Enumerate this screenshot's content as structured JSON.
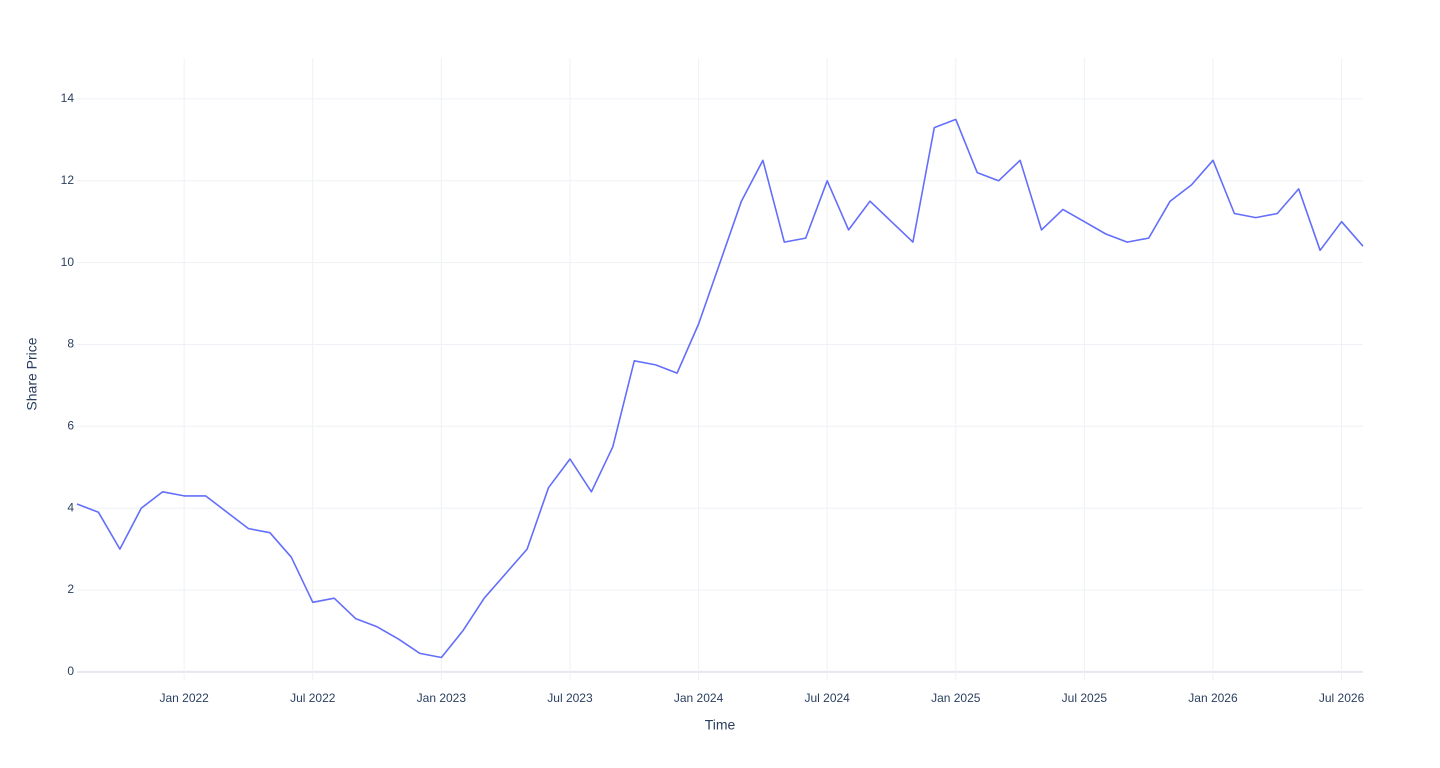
{
  "chart_data": {
    "type": "line",
    "x_label": "Time",
    "y_label": "Share Price",
    "x": [
      "2021-08",
      "2021-09",
      "2021-10",
      "2021-11",
      "2021-12",
      "2022-01",
      "2022-02",
      "2022-03",
      "2022-04",
      "2022-05",
      "2022-06",
      "2022-07",
      "2022-08",
      "2022-09",
      "2022-10",
      "2022-11",
      "2022-12",
      "2023-01",
      "2023-02",
      "2023-03",
      "2023-04",
      "2023-05",
      "2023-06",
      "2023-07",
      "2023-08",
      "2023-09",
      "2023-10",
      "2023-11",
      "2023-12",
      "2024-01",
      "2024-02",
      "2024-03",
      "2024-04",
      "2024-05",
      "2024-06",
      "2024-07",
      "2024-08",
      "2024-09",
      "2024-10",
      "2024-11",
      "2024-12",
      "2025-01",
      "2025-02",
      "2025-03",
      "2025-04",
      "2025-05",
      "2025-06",
      "2025-07",
      "2025-08",
      "2025-09",
      "2025-10",
      "2025-11",
      "2025-12",
      "2026-01",
      "2026-02",
      "2026-03",
      "2026-04",
      "2026-05",
      "2026-06",
      "2026-07",
      "2026-08"
    ],
    "series": [
      {
        "color": "#636efa",
        "values": [
          4.1,
          3.9,
          3.0,
          4.0,
          4.4,
          4.3,
          4.3,
          3.9,
          3.5,
          3.4,
          2.8,
          1.7,
          1.8,
          1.3,
          1.1,
          0.8,
          0.45,
          0.35,
          1.0,
          1.8,
          2.4,
          3.0,
          4.5,
          5.2,
          4.4,
          5.5,
          7.6,
          7.5,
          7.3,
          8.5,
          10.0,
          11.5,
          12.5,
          10.5,
          10.6,
          12.0,
          10.8,
          11.5,
          11.0,
          10.5,
          13.3,
          13.5,
          12.2,
          12.0,
          12.5,
          10.8,
          11.3,
          11.0,
          10.7,
          10.5,
          10.6,
          11.5,
          11.9,
          12.5,
          11.2,
          11.1,
          11.2,
          11.8,
          10.3,
          11.0,
          10.4
        ]
      }
    ],
    "xlim": [
      "2021-08",
      "2026-08"
    ],
    "xticks": [
      {
        "value": "2022-01",
        "label": "Jan 2022"
      },
      {
        "value": "2022-07",
        "label": "Jul 2022"
      },
      {
        "value": "2023-01",
        "label": "Jan 2023"
      },
      {
        "value": "2023-07",
        "label": "Jul 2023"
      },
      {
        "value": "2024-01",
        "label": "Jan 2024"
      },
      {
        "value": "2024-07",
        "label": "Jul 2024"
      },
      {
        "value": "2025-01",
        "label": "Jan 2025"
      },
      {
        "value": "2025-07",
        "label": "Jul 2025"
      },
      {
        "value": "2026-01",
        "label": "Jan 2026"
      },
      {
        "value": "2026-07",
        "label": "Jul 2026"
      }
    ],
    "ylim": [
      -0.2,
      15
    ],
    "yticks": [
      0,
      2,
      4,
      6,
      8,
      10,
      12,
      14
    ],
    "grid": true
  }
}
